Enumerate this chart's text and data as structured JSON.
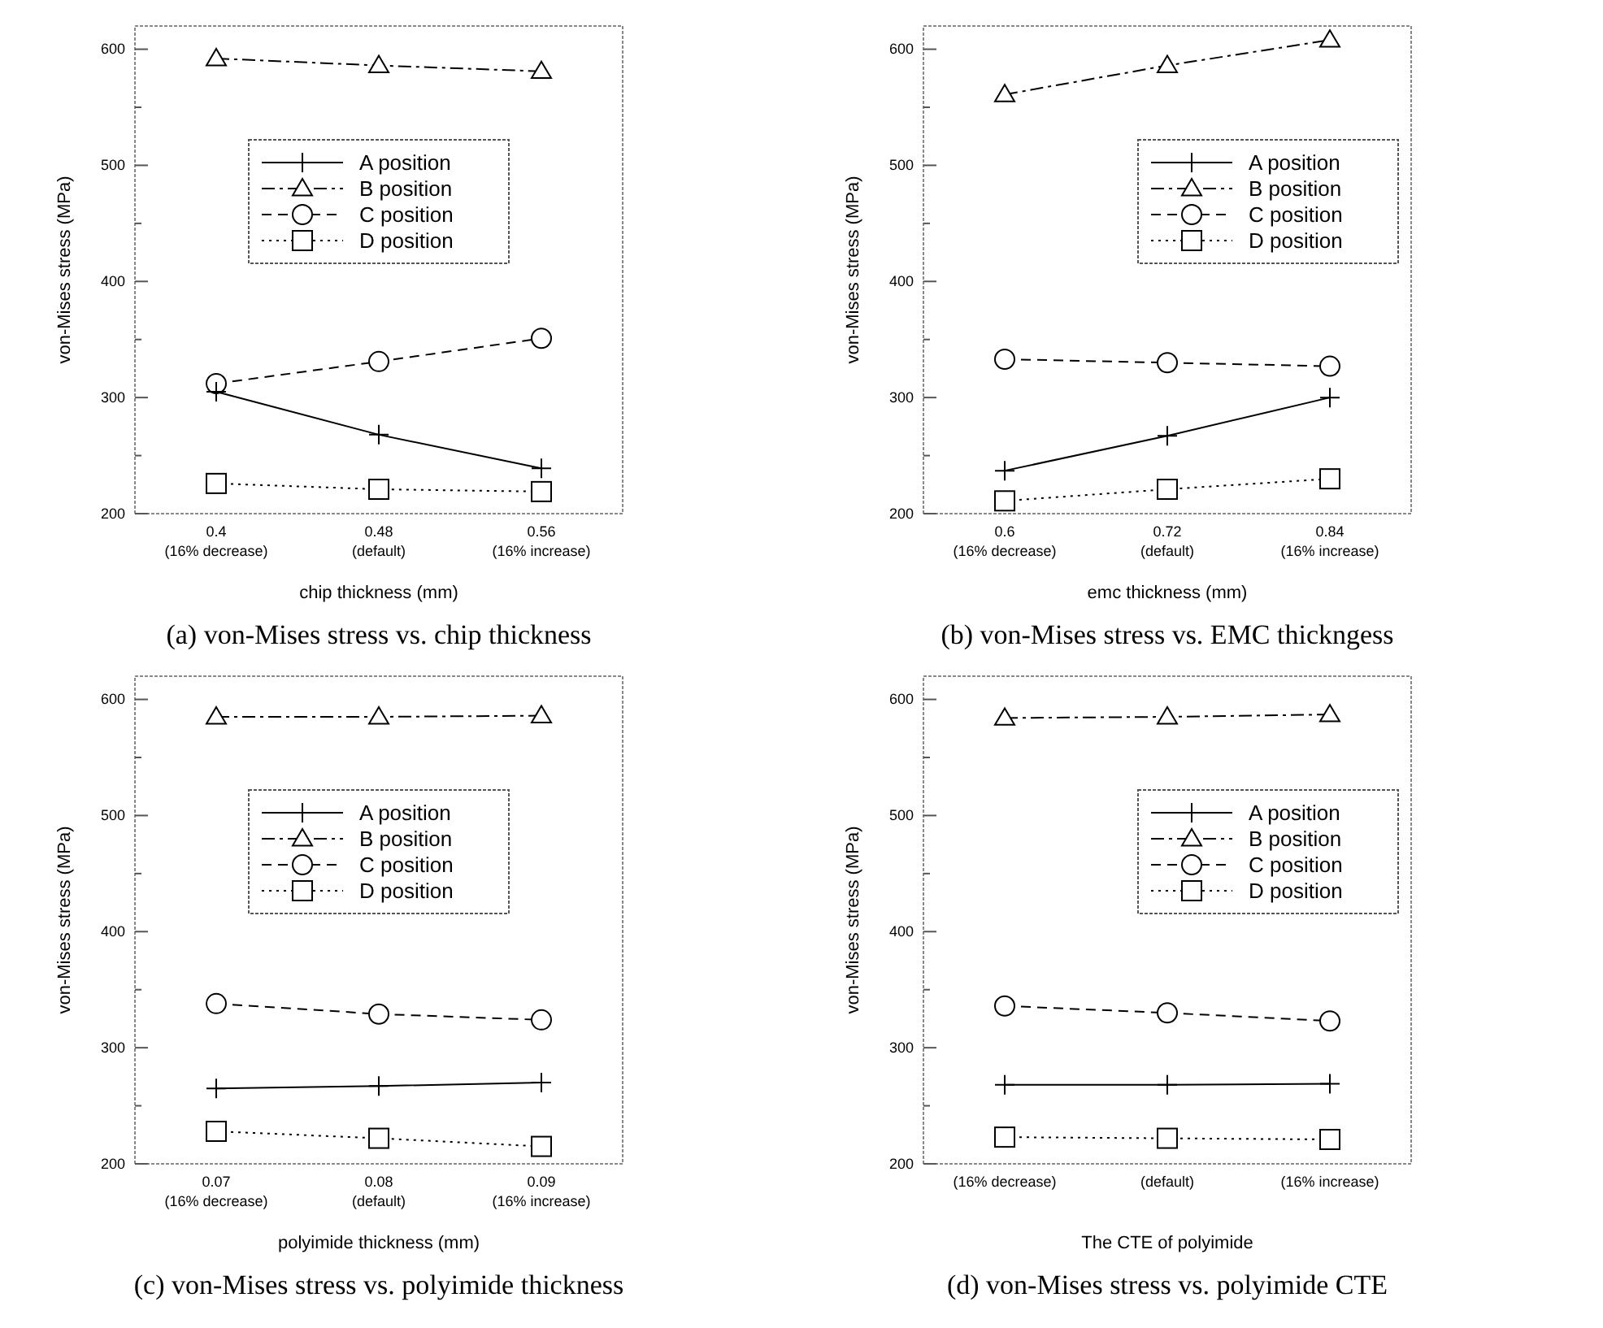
{
  "chart_data": [
    {
      "type": "line",
      "title": "(a) von-Mises stress vs. chip thickness",
      "xlabel": "chip thickness (mm)",
      "ylabel": "von-Mises stress (MPa)",
      "categories": [
        "0.4\n(16% decrease)",
        "0.48\n(default)",
        "0.56\n(16% increase)"
      ],
      "ylim": [
        200,
        620
      ],
      "yticks": [
        200,
        {
          "value": 250,
          "label": null
        },
        300,
        {
          "value": 350,
          "label": null
        },
        400,
        {
          "value": 450,
          "label": null
        },
        500,
        {
          "value": 550,
          "label": null
        },
        600
      ],
      "legend": "top",
      "series": [
        {
          "name": "A position",
          "color": "#000000",
          "marker": "cross",
          "line_style": "solid",
          "values": [
            305,
            268,
            239
          ]
        },
        {
          "name": "B position",
          "color": "#000000",
          "marker": "triangle",
          "line_style": "dashdot",
          "values": [
            592,
            586,
            581
          ]
        },
        {
          "name": "C position",
          "color": "#000000",
          "marker": "circle",
          "line_style": "dashed",
          "values": [
            312,
            331,
            351
          ]
        },
        {
          "name": "D position",
          "color": "#000000",
          "marker": "square",
          "line_style": "dotted",
          "values": [
            226,
            221,
            219
          ]
        }
      ]
    },
    {
      "type": "line",
      "title": "(b) von-Mises stress vs. EMC thickngess",
      "xlabel": "emc thickness (mm)",
      "ylabel": "von-Mises stress (MPa)",
      "categories": [
        "0.6\n(16% decrease)",
        "0.72\n(default)",
        "0.84\n(16% increase)"
      ],
      "ylim": [
        200,
        620
      ],
      "yticks": [
        200,
        {
          "value": 250,
          "label": null
        },
        300,
        {
          "value": 350,
          "label": null
        },
        400,
        {
          "value": 450,
          "label": null
        },
        500,
        {
          "value": 550,
          "label": null
        },
        600
      ],
      "legend": "top right",
      "series": [
        {
          "name": "A position",
          "color": "#000000",
          "marker": "cross",
          "line_style": "solid",
          "values": [
            237,
            267,
            300
          ]
        },
        {
          "name": "B position",
          "color": "#000000",
          "marker": "triangle",
          "line_style": "dashdot",
          "values": [
            561,
            586,
            608
          ]
        },
        {
          "name": "C position",
          "color": "#000000",
          "marker": "circle",
          "line_style": "dashed",
          "values": [
            333,
            330,
            327
          ]
        },
        {
          "name": "D position",
          "color": "#000000",
          "marker": "square",
          "line_style": "dotted",
          "values": [
            211,
            221,
            230
          ]
        }
      ]
    },
    {
      "type": "line",
      "title": "(c) von-Mises stress vs. polyimide thickness",
      "xlabel": "polyimide thickness (mm)",
      "ylabel": "von-Mises stress (MPa)",
      "categories": [
        "0.07\n(16% decrease)",
        "0.08\n(default)",
        "0.09\n(16% increase)"
      ],
      "ylim": [
        200,
        620
      ],
      "yticks": [
        200,
        {
          "value": 250,
          "label": null
        },
        300,
        {
          "value": 350,
          "label": null
        },
        400,
        {
          "value": 450,
          "label": null
        },
        500,
        {
          "value": 550,
          "label": null
        },
        600
      ],
      "legend": "top",
      "series": [
        {
          "name": "A position",
          "color": "#000000",
          "marker": "cross",
          "line_style": "solid",
          "values": [
            265,
            267,
            270
          ]
        },
        {
          "name": "B position",
          "color": "#000000",
          "marker": "triangle",
          "line_style": "dashdot",
          "values": [
            585,
            585,
            586
          ]
        },
        {
          "name": "C position",
          "color": "#000000",
          "marker": "circle",
          "line_style": "dashed",
          "values": [
            338,
            329,
            324
          ]
        },
        {
          "name": "D position",
          "color": "#000000",
          "marker": "square",
          "line_style": "dotted",
          "values": [
            228,
            222,
            215
          ]
        }
      ]
    },
    {
      "type": "line",
      "title": "(d) von-Mises stress vs. polyimide CTE",
      "xlabel": "The CTE of polyimide",
      "ylabel": "von-Mises stress (MPa)",
      "categories": [
        "(16% decrease)",
        "(default)",
        "(16% increase)"
      ],
      "ylim": [
        200,
        620
      ],
      "yticks": [
        200,
        {
          "value": 250,
          "label": null
        },
        300,
        {
          "value": 350,
          "label": null
        },
        400,
        {
          "value": 450,
          "label": null
        },
        500,
        {
          "value": 550,
          "label": null
        },
        600
      ],
      "legend": "top right",
      "series": [
        {
          "name": "A position",
          "color": "#000000",
          "marker": "cross",
          "line_style": "solid",
          "values": [
            268,
            268,
            269
          ]
        },
        {
          "name": "B position",
          "color": "#000000",
          "marker": "triangle",
          "line_style": "dashdot",
          "values": [
            584,
            585,
            587
          ]
        },
        {
          "name": "C position",
          "color": "#000000",
          "marker": "circle",
          "line_style": "dashed",
          "values": [
            336,
            330,
            323
          ]
        },
        {
          "name": "D position",
          "color": "#000000",
          "marker": "square",
          "line_style": "dotted",
          "values": [
            223,
            222,
            221
          ]
        }
      ]
    }
  ]
}
